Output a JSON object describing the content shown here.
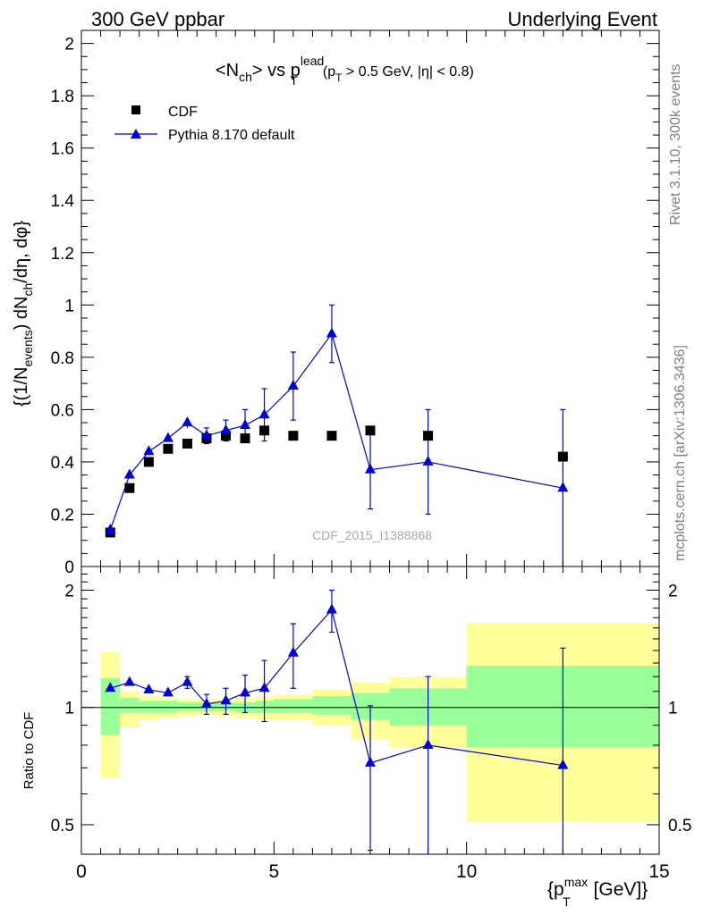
{
  "header": {
    "left": "300 GeV ppbar",
    "right": "Underlying Event"
  },
  "side": {
    "rivet": "Rivet 3.1.10,  300k events",
    "mcplots": "mcplots.cern.ch [arXiv:1306.3436]"
  },
  "watermark": "CDF_2015_I1388868",
  "colors": {
    "mc": "#0000dd",
    "data": "#000000",
    "band_outer": "#ffff99",
    "band_inner": "#99ff99"
  },
  "chart_data": [
    {
      "type": "scatter",
      "panel": "main",
      "title": {
        "p1": "<N",
        "p1sub": "ch",
        "p2": "> vs p",
        "p2sup": "lead",
        "p2sub": "T",
        "cut_a": "(p",
        "cut_a_sub": "T",
        "cut_b": " > 0.5 GeV, |η| < 0.8)"
      },
      "ylabel": "{(1/N_events) dN_ch/dη, dφ}",
      "ylabel_parts": {
        "a": "{(1/N",
        "a_sub": "events",
        "b": ") dN",
        "b_sub": "ch",
        "c": "/dη, dφ}"
      },
      "xlim": [
        0,
        15
      ],
      "ylim": [
        0,
        2.05
      ],
      "yticks": [
        0,
        0.2,
        0.4,
        0.6,
        0.8,
        1,
        1.2,
        1.4,
        1.6,
        1.8,
        2
      ],
      "ytick_labels": [
        "0",
        "0.2",
        "0.4",
        "0.6",
        "0.8",
        "1",
        "1.2",
        "1.4",
        "1.6",
        "1.8",
        "2"
      ],
      "legend": {
        "position": "top-left",
        "data_label": "CDF",
        "mc_label": "Pythia 8.170 default"
      },
      "series": [
        {
          "name": "CDF",
          "marker": "square",
          "x": [
            0.75,
            1.25,
            1.75,
            2.25,
            2.75,
            3.25,
            3.75,
            4.25,
            4.75,
            5.5,
            6.5,
            7.5,
            9,
            12.5
          ],
          "y": [
            0.13,
            0.3,
            0.4,
            0.45,
            0.47,
            0.49,
            0.5,
            0.49,
            0.52,
            0.5,
            0.5,
            0.52,
            0.5,
            0.42
          ]
        },
        {
          "name": "Pythia 8.170 default",
          "marker": "triangle",
          "x": [
            0.75,
            1.25,
            1.75,
            2.25,
            2.75,
            3.25,
            3.75,
            4.25,
            4.75,
            5.5,
            6.5,
            7.5,
            9,
            12.5
          ],
          "y": [
            0.14,
            0.35,
            0.44,
            0.49,
            0.55,
            0.5,
            0.52,
            0.54,
            0.58,
            0.69,
            0.89,
            0.37,
            0.4,
            0.3
          ],
          "yerr": [
            0.01,
            0.01,
            0.01,
            0.01,
            0.02,
            0.03,
            0.04,
            0.06,
            0.1,
            0.13,
            0.11,
            0.15,
            0.2,
            0.3
          ]
        }
      ]
    },
    {
      "type": "scatter",
      "panel": "ratio",
      "ylabel": "Ratio to CDF",
      "xlabel": "{p_T^max [GeV]}",
      "xlabel_parts": {
        "a": "{p",
        "a_sub": "T",
        "a_sup": "max",
        "b": " [GeV]}"
      },
      "xlim": [
        0,
        15
      ],
      "ylim": [
        0.42,
        2.3
      ],
      "yscale": "log",
      "yticks": [
        0.5,
        1,
        2
      ],
      "ytick_labels": [
        "0.5",
        "1",
        "2"
      ],
      "xticks": [
        0,
        5,
        10,
        15
      ],
      "xtick_labels": [
        "0",
        "5",
        "10",
        "15"
      ],
      "bands": {
        "edges": [
          0.5,
          1,
          1.5,
          2,
          2.5,
          3,
          3.5,
          4,
          4.5,
          5,
          6,
          7,
          8,
          10,
          15
        ],
        "outer_lo": [
          0.66,
          0.89,
          0.93,
          0.94,
          0.95,
          0.96,
          0.95,
          0.94,
          0.93,
          0.93,
          0.9,
          0.83,
          0.79,
          0.51
        ],
        "outer_hi": [
          1.39,
          1.1,
          1.07,
          1.06,
          1.05,
          1.05,
          1.05,
          1.06,
          1.07,
          1.08,
          1.11,
          1.16,
          1.2,
          1.65
        ],
        "inner_lo": [
          0.85,
          0.97,
          0.97,
          0.97,
          0.98,
          0.98,
          0.98,
          0.97,
          0.97,
          0.97,
          0.96,
          0.93,
          0.9,
          0.79
        ],
        "inner_hi": [
          1.19,
          1.06,
          1.04,
          1.04,
          1.03,
          1.03,
          1.03,
          1.03,
          1.04,
          1.05,
          1.07,
          1.09,
          1.12,
          1.28
        ]
      },
      "series": [
        {
          "name": "Pythia 8.170 default / CDF",
          "x": [
            0.75,
            1.25,
            1.75,
            2.25,
            2.75,
            3.25,
            3.75,
            4.25,
            4.75,
            5.5,
            6.5,
            7.5,
            9,
            12.5
          ],
          "y": [
            1.12,
            1.16,
            1.11,
            1.09,
            1.16,
            1.02,
            1.04,
            1.09,
            1.12,
            1.38,
            1.78,
            0.72,
            0.8,
            0.71
          ],
          "yerr": [
            0.02,
            0.02,
            0.02,
            0.02,
            0.04,
            0.06,
            0.08,
            0.12,
            0.2,
            0.26,
            0.22,
            0.29,
            0.4,
            0.71
          ]
        }
      ]
    }
  ]
}
